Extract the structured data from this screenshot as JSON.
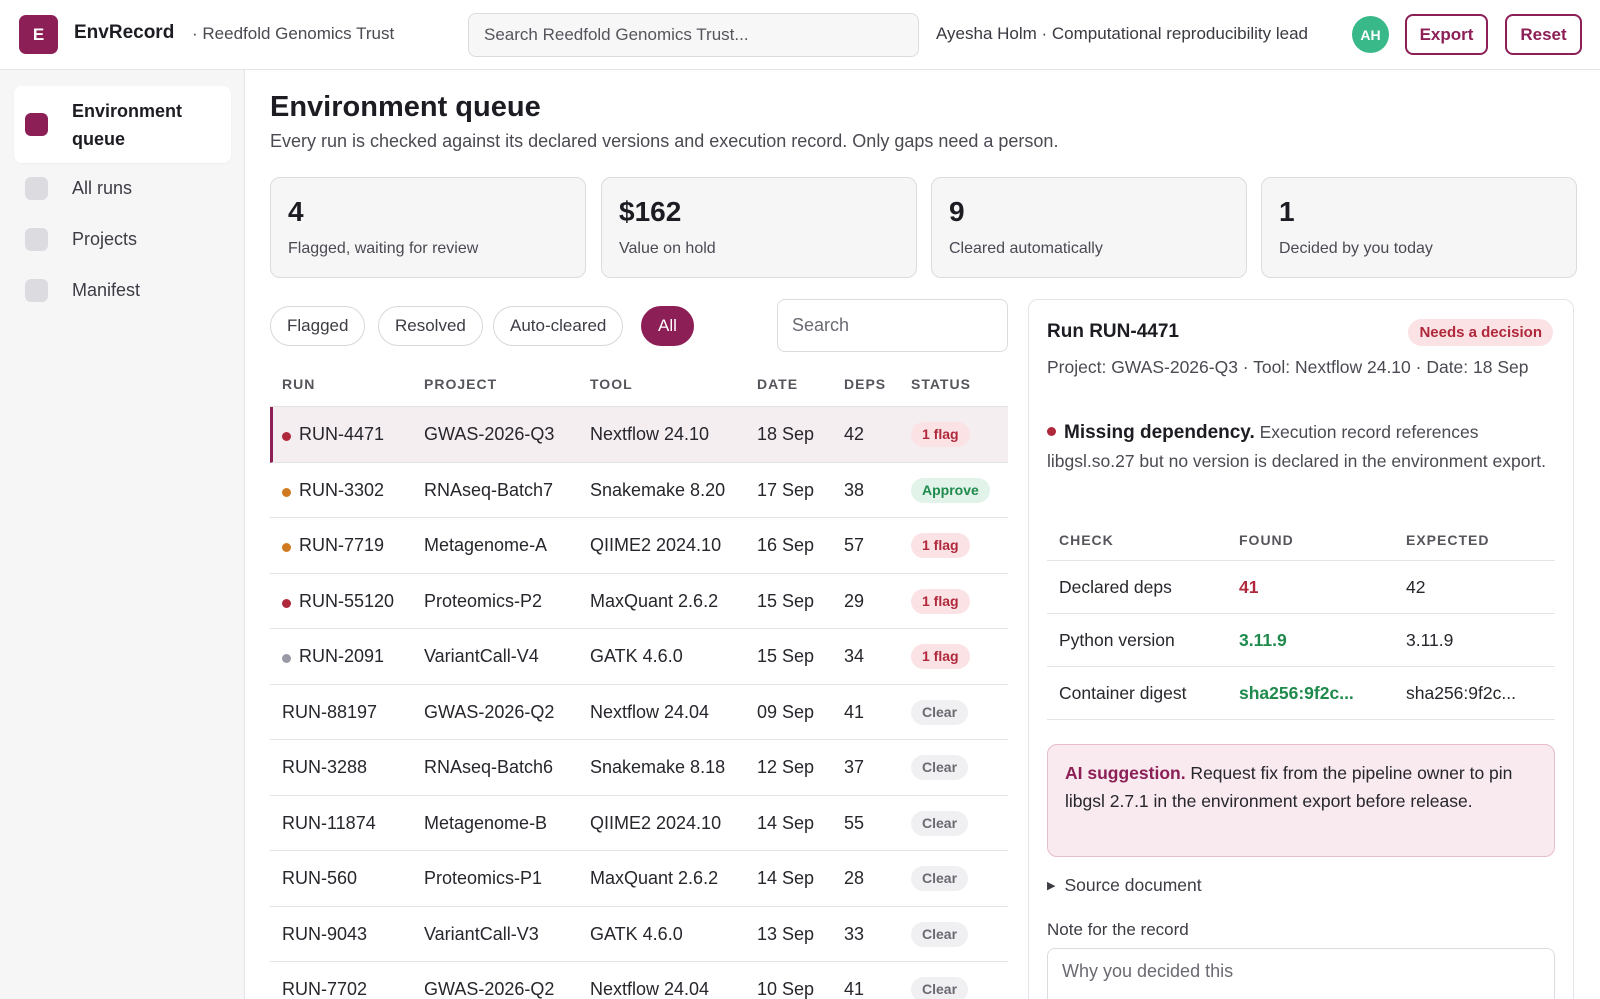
{
  "app": {
    "logo_letter": "E",
    "name": "EnvRecord",
    "org": "· Reedfold Genomics Trust",
    "search_placeholder": "Search Reedfold Genomics Trust...",
    "user": "Ayesha Holm · Computational reproducibility lead",
    "avatar_initials": "AH",
    "export_label": "Export",
    "reset_label": "Reset",
    "accent_color": "#8c1f56"
  },
  "sidebar": {
    "items": [
      {
        "label": "Environment queue",
        "active": true
      },
      {
        "label": "All runs",
        "active": false
      },
      {
        "label": "Projects",
        "active": false
      },
      {
        "label": "Manifest",
        "active": false
      }
    ]
  },
  "main": {
    "title": "Environment queue",
    "subtitle": "Every run is checked against its declared versions and execution record. Only gaps need a person.",
    "stats": [
      {
        "value": "4",
        "label": "Flagged, waiting for review"
      },
      {
        "value": "$162",
        "label": "Value on hold"
      },
      {
        "value": "9",
        "label": "Cleared automatically"
      },
      {
        "value": "1",
        "label": "Decided by you today"
      }
    ],
    "filters": [
      "Flagged",
      "Resolved",
      "Auto-cleared",
      "All"
    ],
    "active_filter": "All",
    "search_placeholder": "Search",
    "table": {
      "headers": [
        "RUN",
        "PROJECT",
        "TOOL",
        "DATE",
        "DEPS",
        "STATUS"
      ],
      "rows": [
        {
          "run": "RUN-4471",
          "project": "GWAS-2026-Q3",
          "tool": "Nextflow 24.10",
          "date": "18 Sep",
          "deps": "42",
          "status": "1 flag",
          "status_type": "flag",
          "dot": "#b0283c",
          "selected": true
        },
        {
          "run": "RUN-3302",
          "project": "RNAseq-Batch7",
          "tool": "Snakemake 8.20",
          "date": "17 Sep",
          "deps": "38",
          "status": "Approve",
          "status_type": "approve",
          "dot": "#d07a1f",
          "selected": false
        },
        {
          "run": "RUN-7719",
          "project": "Metagenome-A",
          "tool": "QIIME2 2024.10",
          "date": "16 Sep",
          "deps": "57",
          "status": "1 flag",
          "status_type": "flag",
          "dot": "#d07a1f",
          "selected": false
        },
        {
          "run": "RUN-55120",
          "project": "Proteomics-P2",
          "tool": "MaxQuant 2.6.2",
          "date": "15 Sep",
          "deps": "29",
          "status": "1 flag",
          "status_type": "flag",
          "dot": "#b0283c",
          "selected": false
        },
        {
          "run": "RUN-2091",
          "project": "VariantCall-V4",
          "tool": "GATK 4.6.0",
          "date": "15 Sep",
          "deps": "34",
          "status": "1 flag",
          "status_type": "flag",
          "dot": "#9a9aa6",
          "selected": false
        },
        {
          "run": "RUN-88197",
          "project": "GWAS-2026-Q2",
          "tool": "Nextflow 24.04",
          "date": "09 Sep",
          "deps": "41",
          "status": "Clear",
          "status_type": "clear",
          "dot": "",
          "selected": false
        },
        {
          "run": "RUN-3288",
          "project": "RNAseq-Batch6",
          "tool": "Snakemake 8.18",
          "date": "12 Sep",
          "deps": "37",
          "status": "Clear",
          "status_type": "clear",
          "dot": "",
          "selected": false
        },
        {
          "run": "RUN-11874",
          "project": "Metagenome-B",
          "tool": "QIIME2 2024.10",
          "date": "14 Sep",
          "deps": "55",
          "status": "Clear",
          "status_type": "clear",
          "dot": "",
          "selected": false
        },
        {
          "run": "RUN-560",
          "project": "Proteomics-P1",
          "tool": "MaxQuant 2.6.2",
          "date": "14 Sep",
          "deps": "28",
          "status": "Clear",
          "status_type": "clear",
          "dot": "",
          "selected": false
        },
        {
          "run": "RUN-9043",
          "project": "VariantCall-V3",
          "tool": "GATK 4.6.0",
          "date": "13 Sep",
          "deps": "33",
          "status": "Clear",
          "status_type": "clear",
          "dot": "",
          "selected": false
        },
        {
          "run": "RUN-7702",
          "project": "GWAS-2026-Q2",
          "tool": "Nextflow 24.04",
          "date": "10 Sep",
          "deps": "41",
          "status": "Clear",
          "status_type": "clear",
          "dot": "",
          "selected": false
        }
      ]
    }
  },
  "detail": {
    "title": "Run RUN-4471",
    "badge": "Needs a decision",
    "meta": "Project: GWAS-2026-Q3 · Tool: Nextflow 24.10 · Date: 18 Sep",
    "issue_title": "Missing dependency.",
    "issue_text": " Execution record references libgsl.so.27 but no version is declared in the environment export.",
    "checks": {
      "headers": [
        "CHECK",
        "FOUND",
        "EXPECTED"
      ],
      "rows": [
        {
          "check": "Declared deps",
          "found": "41",
          "found_state": "bad",
          "expected": "42"
        },
        {
          "check": "Python version",
          "found": "3.11.9",
          "found_state": "good",
          "expected": "3.11.9"
        },
        {
          "check": "Container digest",
          "found": "sha256:9f2c...",
          "found_state": "good",
          "expected": "sha256:9f2c..."
        }
      ]
    },
    "ai_label": "AI suggestion.",
    "ai_text": " Request fix from the pipeline owner to pin libgsl 2.7.1 in the environment export before release.",
    "source_doc": "Source document",
    "note_label": "Note for the record",
    "note_placeholder": "Why you decided this"
  }
}
